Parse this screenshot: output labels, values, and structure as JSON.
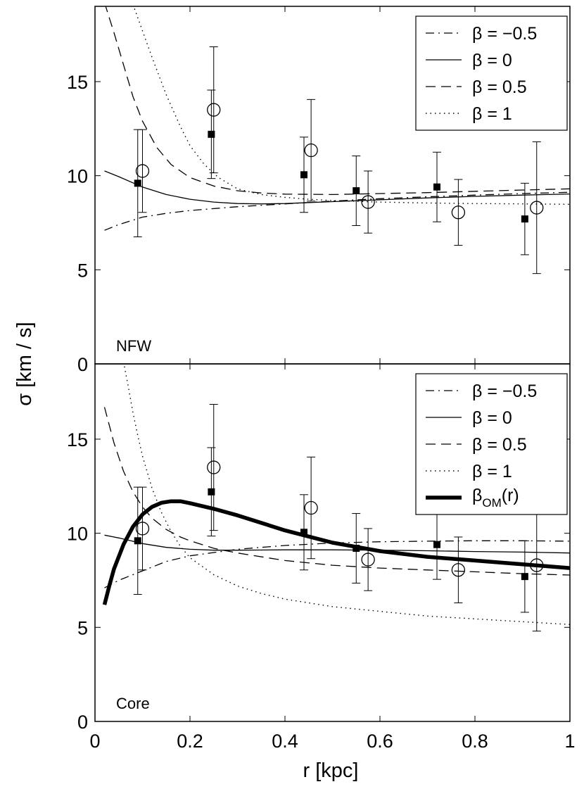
{
  "chart_data": {
    "type": "line",
    "xlabel": "r [kpc]",
    "ylabel": "σ  [km / s]",
    "xlim": [
      0,
      1
    ],
    "xticks": [
      0,
      0.2,
      0.4,
      0.6,
      0.8,
      1
    ],
    "xtick_labels": [
      "0",
      "0.2",
      "0.4",
      "0.6",
      "0.8",
      "1"
    ],
    "panels": [
      {
        "name": "NFW",
        "label": "NFW",
        "ylim": [
          0,
          19
        ],
        "yticks": [
          0,
          5,
          10,
          15
        ],
        "ytick_labels": [
          "0",
          "5",
          "10",
          "15"
        ],
        "legend_position": "top-right",
        "series": [
          {
            "name": "β = −0.5",
            "style": "dashdot",
            "x": [
              0.02,
              0.05,
              0.1,
              0.15,
              0.2,
              0.3,
              0.4,
              0.5,
              0.6,
              0.7,
              0.8,
              0.9,
              1.0
            ],
            "y": [
              7.1,
              7.4,
              7.8,
              8.0,
              8.15,
              8.35,
              8.5,
              8.65,
              8.78,
              8.88,
              8.97,
              9.05,
              9.12
            ]
          },
          {
            "name": "β = 0",
            "style": "solid",
            "x": [
              0.02,
              0.05,
              0.1,
              0.15,
              0.2,
              0.25,
              0.3,
              0.35,
              0.4,
              0.5,
              0.6,
              0.7,
              0.8,
              0.9,
              1.0
            ],
            "y": [
              10.25,
              9.95,
              9.4,
              9.0,
              8.75,
              8.6,
              8.52,
              8.5,
              8.52,
              8.62,
              8.72,
              8.82,
              8.9,
              8.97,
              9.03
            ]
          },
          {
            "name": "β = 0.5",
            "style": "dashed",
            "x": [
              0.02,
              0.04,
              0.06,
              0.08,
              0.1,
              0.13,
              0.16,
              0.2,
              0.25,
              0.3,
              0.35,
              0.4,
              0.5,
              0.6,
              0.7,
              0.8,
              0.9,
              1.0
            ],
            "y": [
              19.2,
              17.6,
              15.9,
              14.2,
              12.9,
              11.5,
              10.6,
              9.9,
              9.45,
              9.2,
              9.08,
              9.02,
              9.0,
              9.05,
              9.1,
              9.17,
              9.24,
              9.3
            ]
          },
          {
            "name": "β = 1",
            "style": "dotted",
            "x": [
              0.08,
              0.1,
              0.12,
              0.15,
              0.18,
              0.2,
              0.23,
              0.26,
              0.3,
              0.35,
              0.4,
              0.45,
              0.5,
              0.6,
              0.7,
              0.8,
              0.9,
              1.0
            ],
            "y": [
              19.1,
              17.7,
              16.3,
              14.3,
              12.6,
              11.6,
              10.6,
              9.9,
              9.3,
              9.0,
              8.85,
              8.75,
              8.68,
              8.6,
              8.55,
              8.52,
              8.5,
              8.48
            ]
          }
        ],
        "points": {
          "filled_squares": {
            "x": [
              0.09,
              0.245,
              0.44,
              0.55,
              0.72,
              0.905
            ],
            "y": [
              9.6,
              12.2,
              10.05,
              9.2,
              9.4,
              7.7
            ],
            "yerr": [
              2.85,
              2.35,
              2.0,
              1.85,
              1.85,
              1.9
            ]
          },
          "open_circles": {
            "x": [
              0.1,
              0.25,
              0.455,
              0.575,
              0.765,
              0.93
            ],
            "y": [
              10.25,
              13.5,
              11.35,
              8.6,
              8.05,
              8.3
            ],
            "yerr": [
              2.2,
              3.35,
              2.7,
              1.65,
              1.75,
              3.5
            ]
          }
        }
      },
      {
        "name": "Core",
        "label": "Core",
        "ylim": [
          0,
          19
        ],
        "yticks": [
          0,
          5,
          10,
          15
        ],
        "ytick_labels": [
          "0",
          "5",
          "10",
          "15"
        ],
        "legend_position": "top-right",
        "series": [
          {
            "name": "β = −0.5",
            "style": "dashdot",
            "x": [
              0.02,
              0.05,
              0.1,
              0.15,
              0.2,
              0.3,
              0.4,
              0.5,
              0.6,
              0.7,
              0.8,
              0.9,
              1.0
            ],
            "y": [
              7.1,
              7.5,
              8.0,
              8.5,
              8.8,
              9.15,
              9.35,
              9.48,
              9.55,
              9.58,
              9.6,
              9.6,
              9.58
            ]
          },
          {
            "name": "β = 0",
            "style": "solid",
            "x": [
              0.02,
              0.05,
              0.1,
              0.15,
              0.2,
              0.25,
              0.3,
              0.4,
              0.5,
              0.6,
              0.7,
              0.8,
              0.9,
              1.0
            ],
            "y": [
              9.9,
              9.75,
              9.45,
              9.25,
              9.15,
              9.1,
              9.1,
              9.12,
              9.12,
              9.1,
              9.07,
              9.03,
              9.0,
              8.95
            ]
          },
          {
            "name": "β = 0.5",
            "style": "dashed",
            "x": [
              0.02,
              0.04,
              0.06,
              0.08,
              0.1,
              0.12,
              0.15,
              0.18,
              0.2,
              0.25,
              0.3,
              0.4,
              0.5,
              0.6,
              0.7,
              0.8,
              0.9,
              1.0
            ],
            "y": [
              16.7,
              14.8,
              13.3,
              12.2,
              11.4,
              10.8,
              10.2,
              9.8,
              9.6,
              9.2,
              8.95,
              8.55,
              8.3,
              8.15,
              8.05,
              7.95,
              7.85,
              7.78
            ]
          },
          {
            "name": "β = 1",
            "style": "dotted",
            "x": [
              0.06,
              0.07,
              0.08,
              0.09,
              0.1,
              0.12,
              0.14,
              0.16,
              0.18,
              0.2,
              0.25,
              0.3,
              0.35,
              0.4,
              0.5,
              0.6,
              0.7,
              0.8,
              0.9,
              1.0
            ],
            "y": [
              19.1,
              17.8,
              16.4,
              15.2,
              14.1,
              12.4,
              11.1,
              10.1,
              9.3,
              8.7,
              7.8,
              7.2,
              6.8,
              6.5,
              6.1,
              5.85,
              5.6,
              5.45,
              5.3,
              5.15
            ]
          },
          {
            "name": "βOM(r)",
            "style": "thick",
            "x": [
              0.02,
              0.03,
              0.04,
              0.06,
              0.08,
              0.1,
              0.12,
              0.14,
              0.16,
              0.18,
              0.2,
              0.25,
              0.3,
              0.35,
              0.4,
              0.5,
              0.6,
              0.7,
              0.8,
              0.9,
              1.0
            ],
            "y": [
              6.2,
              7.2,
              8.1,
              9.4,
              10.35,
              11.0,
              11.4,
              11.62,
              11.7,
              11.7,
              11.6,
              11.3,
              10.95,
              10.55,
              10.15,
              9.5,
              9.05,
              8.75,
              8.55,
              8.35,
              8.15
            ]
          }
        ],
        "points": {
          "filled_squares": {
            "x": [
              0.09,
              0.245,
              0.44,
              0.55,
              0.72,
              0.905
            ],
            "y": [
              9.6,
              12.2,
              10.05,
              9.2,
              9.4,
              7.7
            ],
            "yerr": [
              2.85,
              2.35,
              2.0,
              1.85,
              1.85,
              1.9
            ]
          },
          "open_circles": {
            "x": [
              0.1,
              0.25,
              0.455,
              0.575,
              0.765,
              0.93
            ],
            "y": [
              10.25,
              13.5,
              11.35,
              8.6,
              8.05,
              8.3
            ],
            "yerr": [
              2.2,
              3.35,
              2.7,
              1.65,
              1.75,
              3.5
            ]
          }
        }
      }
    ],
    "legend": {
      "entries": [
        {
          "series": "β = −0.5",
          "text": "β = −0.5"
        },
        {
          "series": "β = 0",
          "text": "β = 0"
        },
        {
          "series": "β = 0.5",
          "text": "β = 0.5"
        },
        {
          "series": "β = 1",
          "text": "β = 1"
        }
      ],
      "om_entry": {
        "symbol": "β",
        "subscript": "OM",
        "suffix": "(r)"
      }
    }
  }
}
